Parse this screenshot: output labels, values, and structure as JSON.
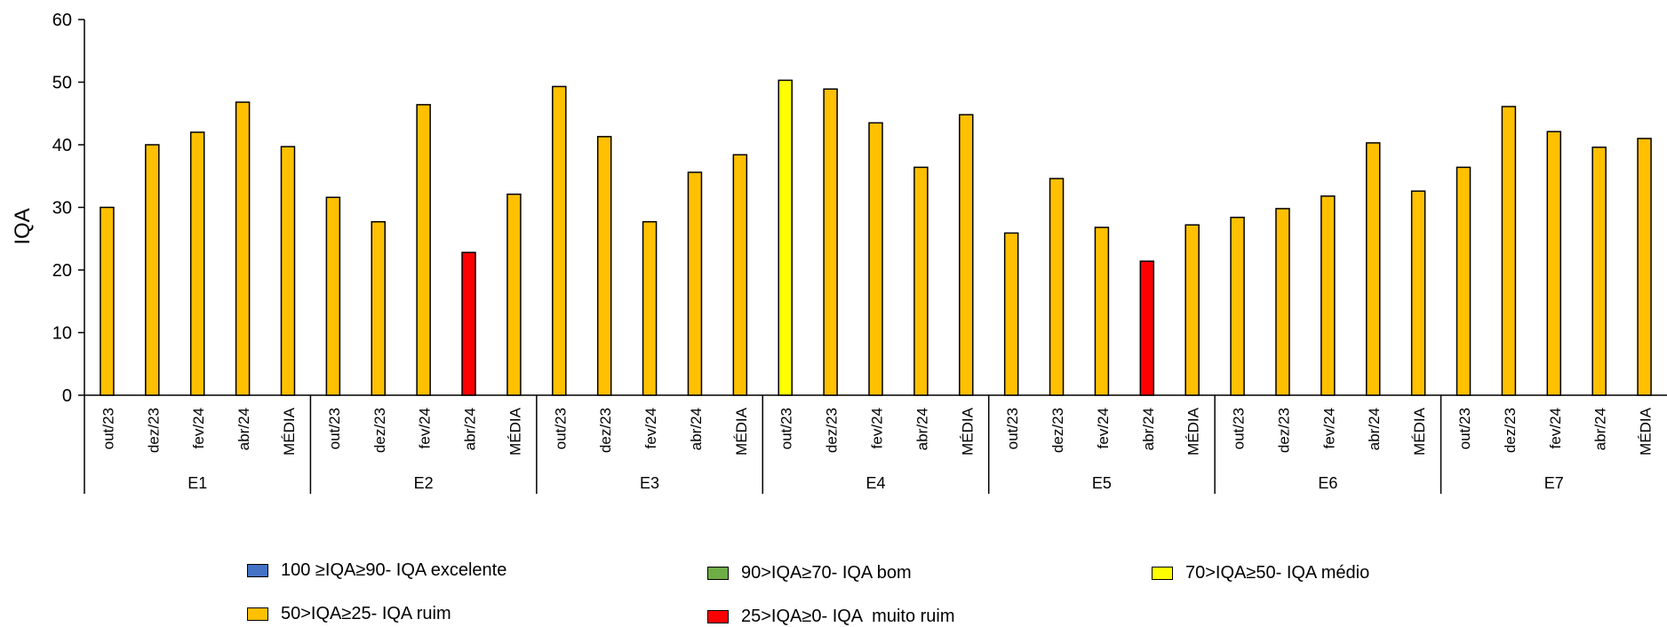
{
  "chart_data": {
    "type": "bar",
    "title": "",
    "xlabel": "",
    "ylabel": "IQA",
    "ylim": [
      0,
      60
    ],
    "yticks": [
      0,
      10,
      20,
      30,
      40,
      50,
      60
    ],
    "grid": false,
    "legend_position": "bottom",
    "groups": [
      {
        "name": "E1",
        "categories": [
          "out/23",
          "dez/23",
          "fev/24",
          "abr/24",
          "MÉDIA"
        ],
        "values": [
          30.0,
          40.0,
          42.0,
          46.8,
          39.7
        ]
      },
      {
        "name": "E2",
        "categories": [
          "out/23",
          "dez/23",
          "fev/24",
          "abr/24",
          "MÉDIA"
        ],
        "values": [
          31.6,
          27.7,
          46.4,
          22.8,
          32.1
        ]
      },
      {
        "name": "E3",
        "categories": [
          "out/23",
          "dez/23",
          "fev/24",
          "abr/24",
          "MÉDIA"
        ],
        "values": [
          49.3,
          41.3,
          27.7,
          35.6,
          38.4
        ]
      },
      {
        "name": "E4",
        "categories": [
          "out/23",
          "dez/23",
          "fev/24",
          "abr/24",
          "MÉDIA"
        ],
        "values": [
          50.3,
          48.9,
          43.5,
          36.4,
          44.8
        ]
      },
      {
        "name": "E5",
        "categories": [
          "out/23",
          "dez/23",
          "fev/24",
          "abr/24",
          "MÉDIA"
        ],
        "values": [
          25.9,
          34.6,
          26.8,
          21.4,
          27.2
        ]
      },
      {
        "name": "E6",
        "categories": [
          "out/23",
          "dez/23",
          "fev/24",
          "abr/24",
          "MÉDIA"
        ],
        "values": [
          28.4,
          29.8,
          31.8,
          40.3,
          32.6
        ]
      },
      {
        "name": "E7",
        "categories": [
          "out/23",
          "dez/23",
          "fev/24",
          "abr/24",
          "MÉDIA"
        ],
        "values": [
          36.4,
          46.1,
          42.1,
          39.6,
          41.0
        ]
      }
    ],
    "classes": [
      {
        "label": "100 ≥IQA≥90- IQA excelente",
        "color": "#4472c4",
        "min": 90
      },
      {
        "label": "90>IQA≥70- IQA bom",
        "color": "#70ad47",
        "min": 70
      },
      {
        "label": "70>IQA≥50- IQA médio",
        "color": "#ffff00",
        "min": 50
      },
      {
        "label": "50>IQA≥25- IQA ruim",
        "color": "#ffc000",
        "min": 25
      },
      {
        "label": "25>IQA≥0- IQA  muito ruim",
        "color": "#ff0000",
        "min": 0
      }
    ]
  }
}
